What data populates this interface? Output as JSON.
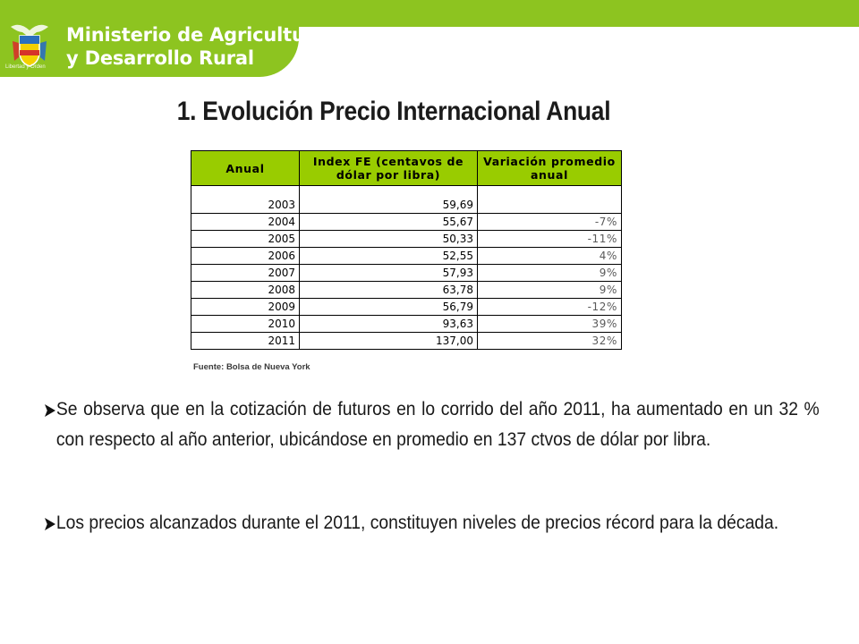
{
  "header": {
    "brand_line1": "Ministerio de Agricultura",
    "brand_line2": "y Desarrollo Rural",
    "emblem_caption": "Libertad y Orden",
    "emblem_icon": "colombia-coat-of-arms-icon",
    "accent_color": "#8dc420"
  },
  "title": "1. Evolución Precio Internacional Anual",
  "table": {
    "headers": [
      "Anual",
      "Index FE (centavos de dólar por libra)",
      "Variación promedio anual"
    ],
    "header_color": "#99cc00",
    "rows": [
      {
        "year": "2003",
        "index": "59,69",
        "variation": ""
      },
      {
        "year": "2004",
        "index": "55,67",
        "variation": "-7%"
      },
      {
        "year": "2005",
        "index": "50,33",
        "variation": "-11%"
      },
      {
        "year": "2006",
        "index": "52,55",
        "variation": "4%"
      },
      {
        "year": "2007",
        "index": "57,93",
        "variation": "9%"
      },
      {
        "year": "2008",
        "index": "63,78",
        "variation": "9%"
      },
      {
        "year": "2009",
        "index": "56,79",
        "variation": "-12%"
      },
      {
        "year": "2010",
        "index": "93,63",
        "variation": "39%"
      },
      {
        "year": "2011",
        "index": "137,00",
        "variation": "32%"
      }
    ]
  },
  "source": "Fuente: Bolsa de Nueva York",
  "bullets": [
    "Se observa que en la cotización de futuros en lo corrido del año 2011, ha aumentado en un 32 % con respecto al año anterior, ubicándose en promedio en 137 ctvos de dólar por libra.",
    "Los precios alcanzados durante el 2011, constituyen niveles de precios récord para la década."
  ]
}
